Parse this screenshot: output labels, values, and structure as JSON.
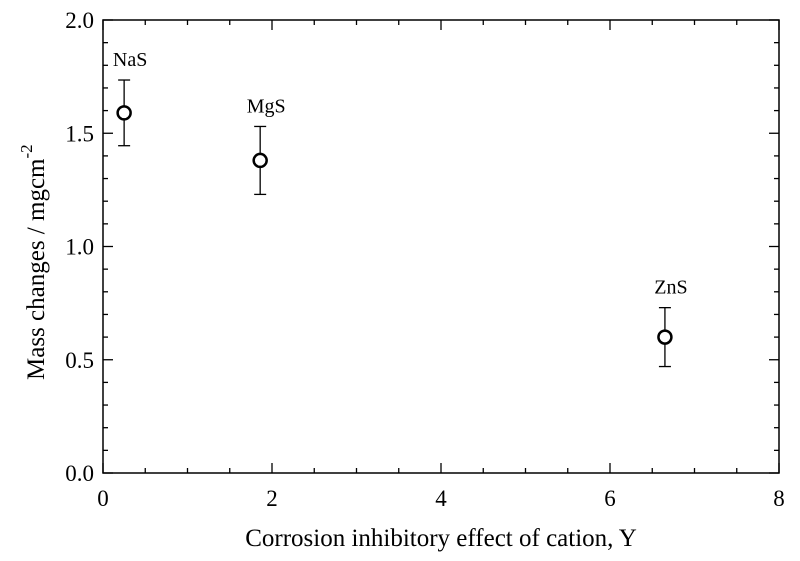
{
  "chart_data": {
    "type": "scatter",
    "x_label": "Corrosion inhibitory effect of cation, Y",
    "y_label": "Mass changes / mgcm",
    "y_label_sup": "-2",
    "x": [
      0.25,
      1.86,
      6.65
    ],
    "values": [
      1.59,
      1.38,
      0.6
    ],
    "errors": [
      0.145,
      0.15,
      0.13
    ],
    "point_labels": [
      "NaS",
      "MgS",
      "ZnS"
    ],
    "color": "#000000",
    "xlim": [
      0,
      8
    ],
    "xticks": [
      0,
      2,
      4,
      6,
      8
    ],
    "xminorticks": [
      0.5,
      1,
      1.5,
      2.5,
      3,
      3.5,
      4.5,
      5,
      5.5,
      6.5,
      7,
      7.5
    ],
    "ylim": [
      0,
      2
    ],
    "yticks": [
      {
        "value": 0,
        "label": "0.0"
      },
      {
        "value": 0.5,
        "label": "0.5"
      },
      {
        "value": 1,
        "label": "1.0"
      },
      {
        "value": 1.5,
        "label": "1.5"
      },
      {
        "value": 2,
        "label": "2.0"
      }
    ],
    "yminorticks": [
      0.1,
      0.2,
      0.3,
      0.4,
      0.6,
      0.7,
      0.8,
      0.9,
      1.1,
      1.2,
      1.3,
      1.4,
      1.6,
      1.7,
      1.8,
      1.9
    ],
    "grid": false
  }
}
